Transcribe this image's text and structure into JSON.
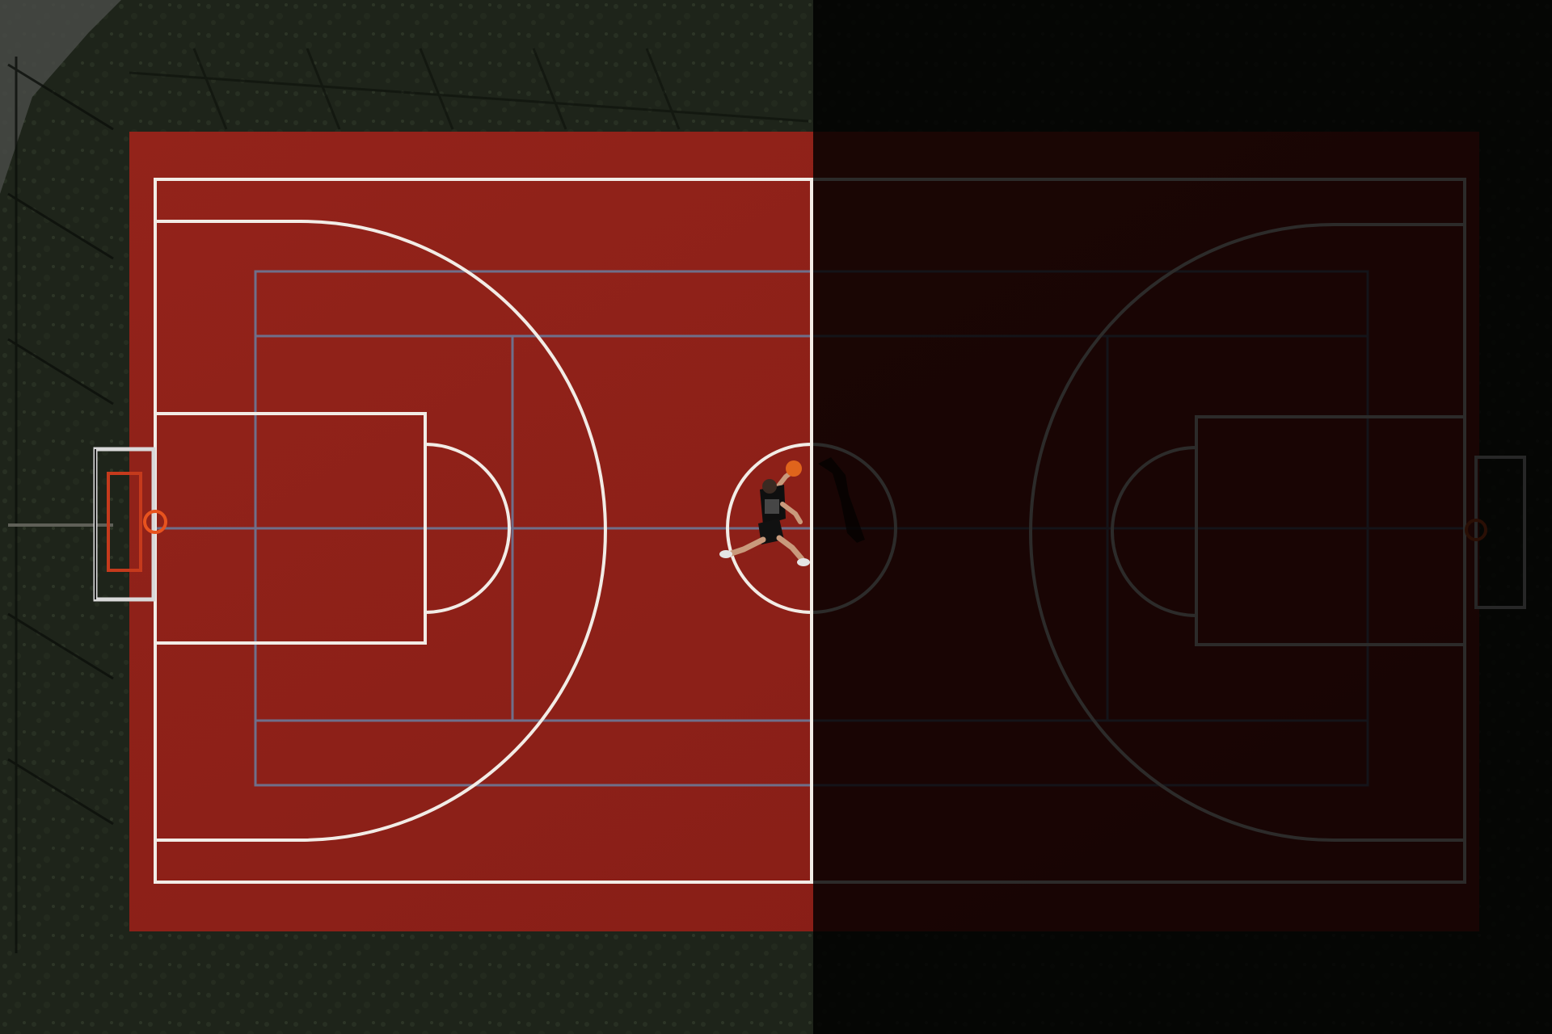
{
  "photo": {
    "subject": "aerial-basketball-court",
    "colors": {
      "court_surface": "#8e2019",
      "court_surface_dark": "#7c1a14",
      "court_lines": "#f2ece6",
      "secondary_lines": "#6f6f8a",
      "grass": "#1e241a",
      "grass_light": "#2b3226",
      "path": "#4a4c48",
      "shadow_overlay": "#000000",
      "ball": "#e0641c",
      "rim": "#e8531e",
      "backboard_frame": "#d9d9d9",
      "player_shirt": "#0f0f0f",
      "player_skin": "#c99a7c"
    },
    "shadow_overlay_opacity": 0.82,
    "elements": {
      "court": "court-surface",
      "left_hoop": "basketball-hoop",
      "player": "jumping-player",
      "ball": "basketball"
    }
  }
}
